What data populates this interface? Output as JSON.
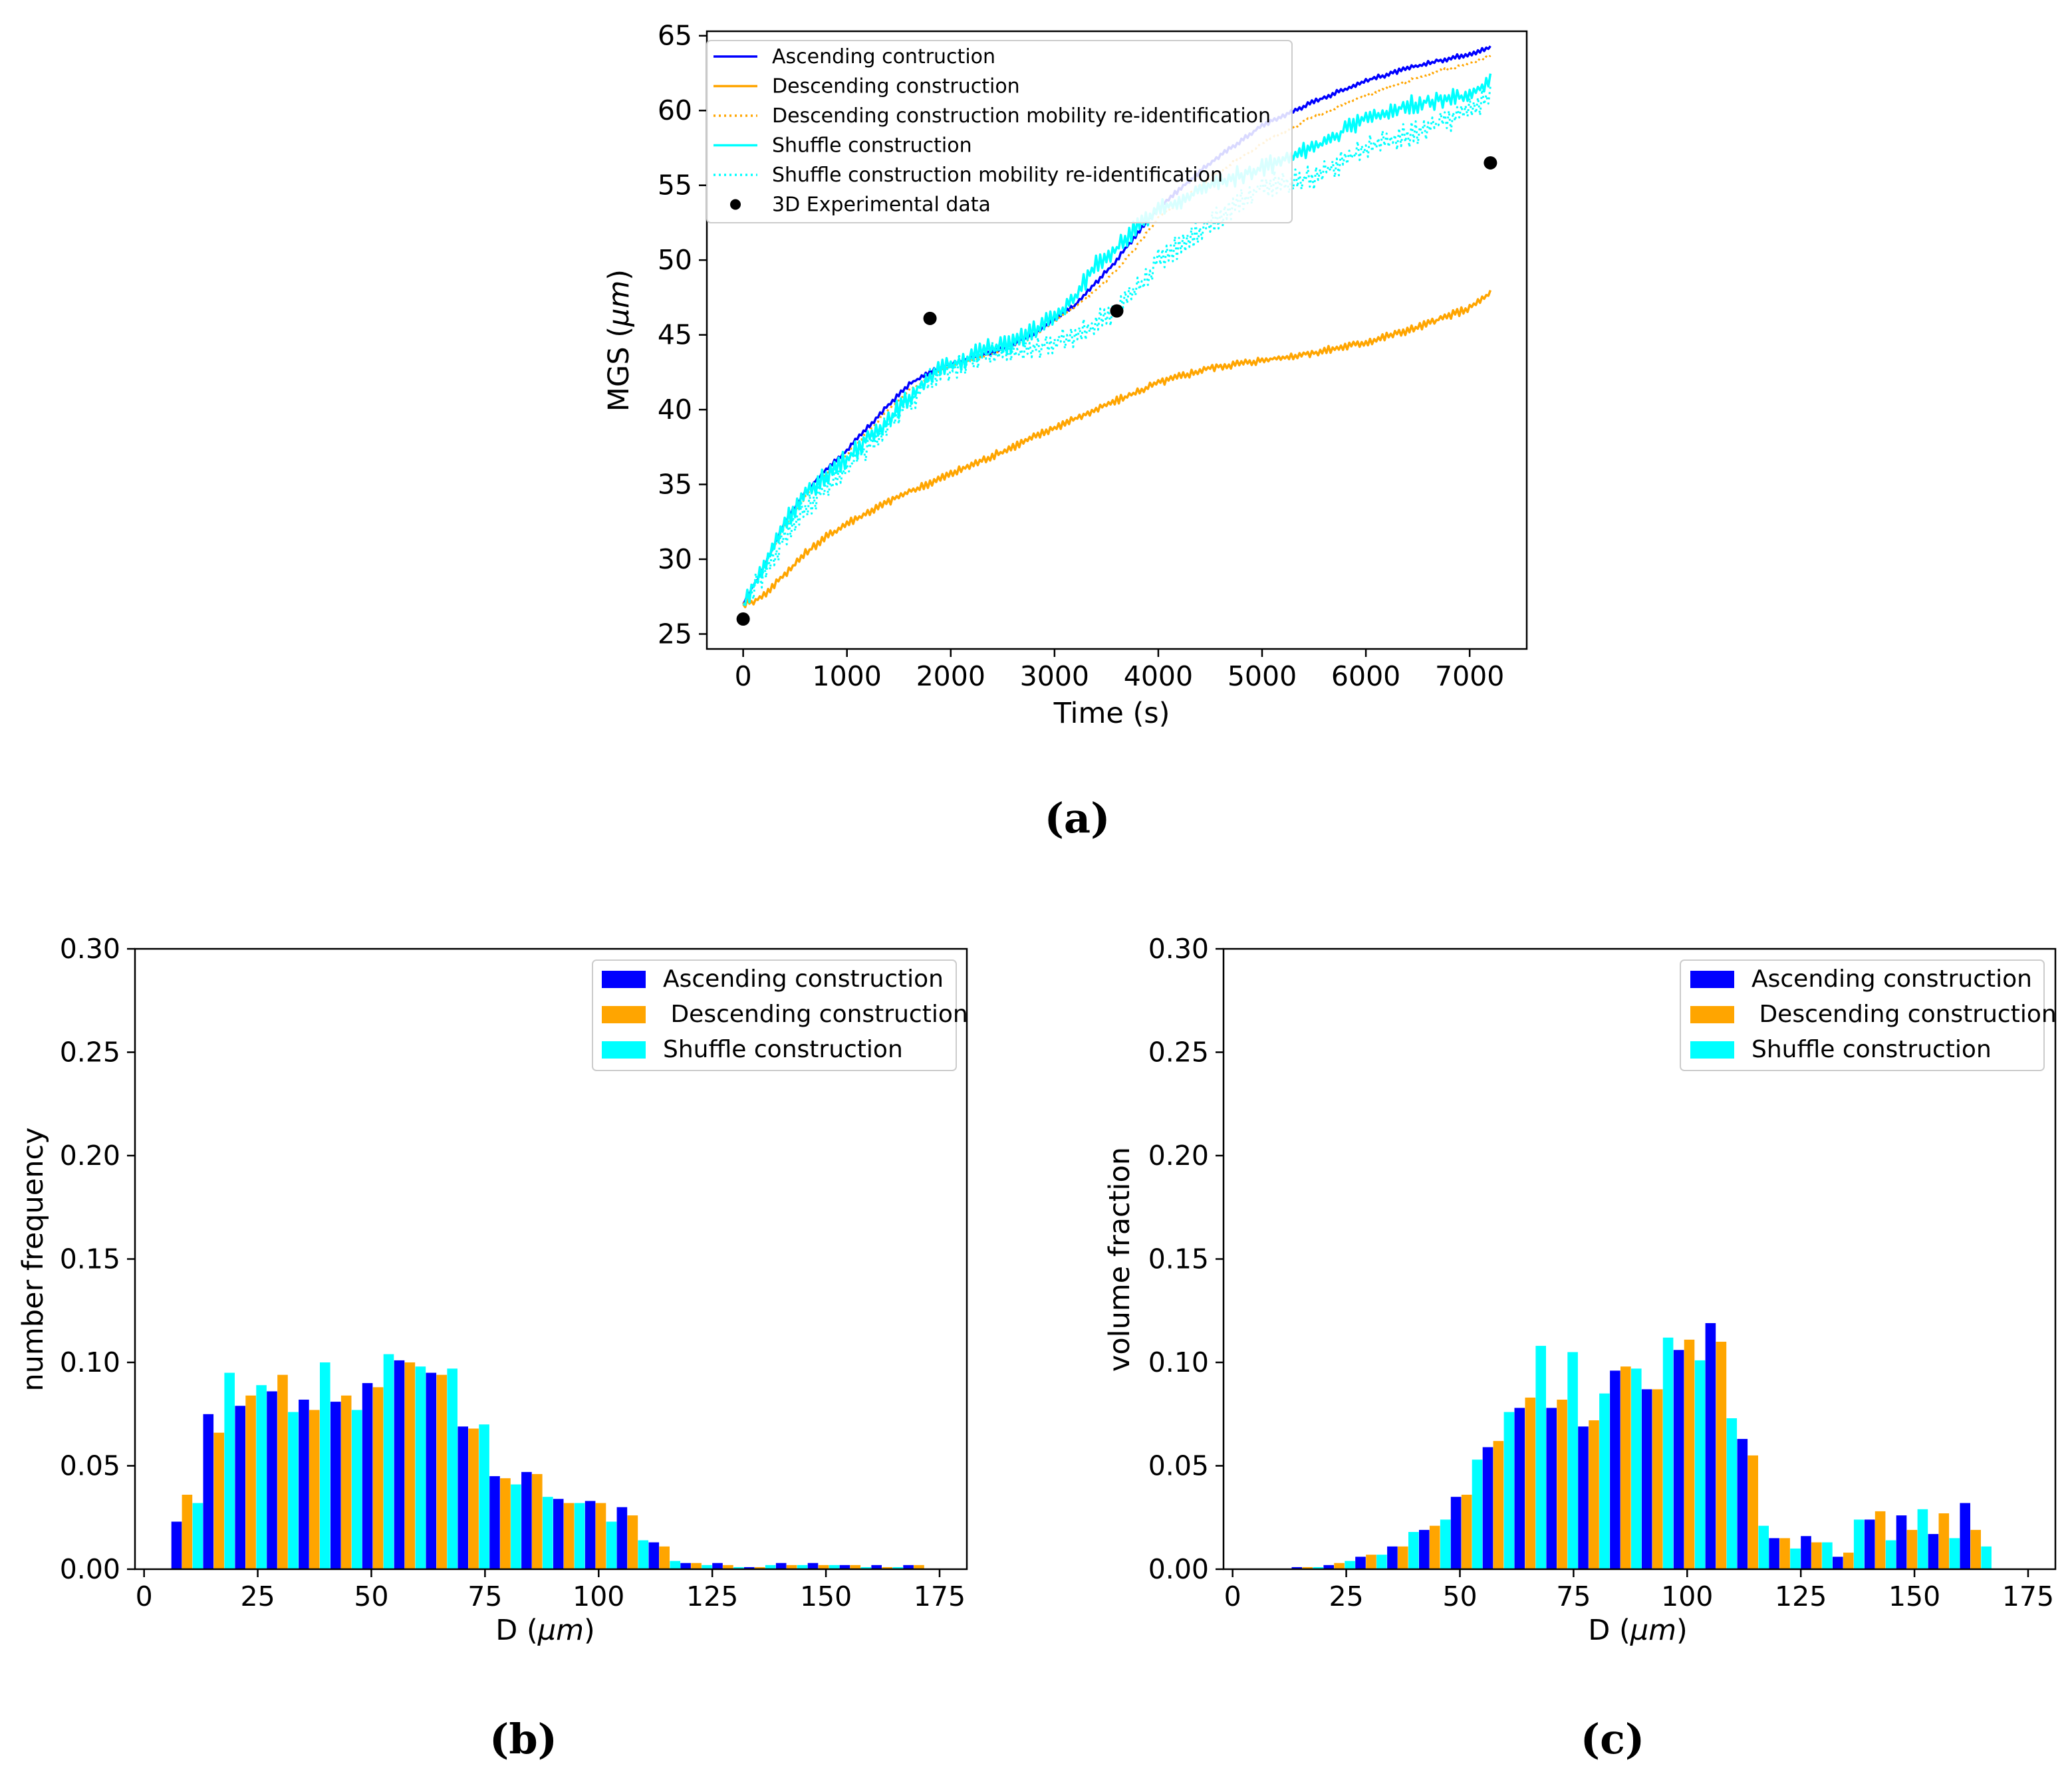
{
  "chart_data": [
    {
      "id": "a",
      "type": "line",
      "caption": "(a)",
      "xlabel": "Time (s)",
      "ylabel_prefix": "MGS (",
      "ylabel_unit": "μm",
      "ylabel_suffix": ")",
      "xlim": [
        -350,
        7550
      ],
      "ylim": [
        24,
        65.3
      ],
      "xticks": [
        0,
        1000,
        2000,
        3000,
        4000,
        5000,
        6000,
        7000
      ],
      "yticks": [
        25,
        30,
        35,
        40,
        45,
        50,
        55,
        60,
        65
      ],
      "legend_position": "top-left",
      "series": [
        {
          "name": "Ascending contruction",
          "color": "#0000ff",
          "style": "solid",
          "noise": 0.15,
          "x": [
            0,
            200,
            400,
            600,
            800,
            1000,
            1200,
            1400,
            1600,
            1800,
            2000,
            2200,
            2400,
            2600,
            2800,
            3000,
            3200,
            3400,
            3600,
            3800,
            4000,
            4500,
            5000,
            5500,
            6000,
            6500,
            7000,
            7200
          ],
          "y": [
            27,
            29.5,
            32.5,
            34.5,
            36.0,
            37.3,
            38.8,
            40.3,
            41.7,
            42.5,
            43.1,
            43.5,
            43.8,
            44.4,
            45.0,
            46.0,
            47.0,
            48.5,
            50.0,
            51.8,
            53.5,
            56.5,
            59.0,
            60.6,
            62.0,
            63.0,
            63.8,
            64.2
          ]
        },
        {
          "name": "Descending construction",
          "color": "#ffa500",
          "style": "solid",
          "noise": 0.25,
          "x": [
            0,
            100,
            200,
            400,
            600,
            800,
            1000,
            1500,
            2000,
            2500,
            3000,
            3500,
            4000,
            4500,
            5000,
            5500,
            6000,
            6500,
            7000,
            7200
          ],
          "y": [
            27,
            27.2,
            27.6,
            29.0,
            30.4,
            31.5,
            32.4,
            34.2,
            35.7,
            37.2,
            38.8,
            40.3,
            41.8,
            42.8,
            43.3,
            43.8,
            44.5,
            45.5,
            46.8,
            47.8
          ]
        },
        {
          "name": "Descending construction mobility re-identification",
          "color": "#ffa500",
          "style": "dotted",
          "noise": 0.1,
          "x": [
            0,
            200,
            400,
            600,
            800,
            1000,
            1200,
            1400,
            1600,
            1800,
            2000,
            2200,
            2400,
            2600,
            2800,
            3000,
            3200,
            3400,
            3600,
            3800,
            4000,
            4500,
            5000,
            5500,
            6000,
            6500,
            7000,
            7200
          ],
          "y": [
            27,
            29.5,
            32.2,
            34.2,
            35.7,
            37.0,
            38.5,
            40.0,
            41.3,
            42.2,
            42.9,
            43.3,
            43.7,
            44.3,
            44.9,
            45.9,
            46.9,
            48.0,
            49.3,
            51.0,
            52.8,
            55.5,
            57.8,
            59.6,
            61.0,
            62.2,
            63.2,
            63.6
          ]
        },
        {
          "name": "Shuffle construction",
          "color": "#00ffff",
          "style": "solid",
          "noise": 0.6,
          "x": [
            0,
            200,
            400,
            600,
            800,
            1000,
            1200,
            1400,
            1600,
            1800,
            2000,
            2200,
            2400,
            2600,
            2800,
            3000,
            3200,
            3400,
            3600,
            3800,
            4000,
            4500,
            5000,
            5500,
            6000,
            6500,
            7000,
            7200
          ],
          "y": [
            27,
            29.5,
            32.5,
            34.3,
            35.6,
            36.8,
            38.0,
            39.4,
            40.8,
            42.3,
            43.0,
            43.6,
            44.2,
            44.4,
            45.3,
            46.2,
            47.5,
            49.8,
            50.8,
            52.2,
            53.3,
            55.0,
            56.2,
            57.5,
            59.5,
            60.5,
            61.0,
            62.0
          ]
        },
        {
          "name": "Shuffle construction mobility re-identification",
          "color": "#00ffff",
          "style": "dotted",
          "noise": 0.8,
          "x": [
            0,
            200,
            400,
            600,
            800,
            1000,
            1200,
            1400,
            1600,
            1800,
            2000,
            2200,
            2400,
            2600,
            2800,
            3000,
            3200,
            3400,
            3600,
            3800,
            4000,
            4500,
            5000,
            5500,
            6000,
            6500,
            7000,
            7200
          ],
          "y": [
            27,
            29.0,
            31.5,
            33.5,
            34.8,
            36.0,
            37.5,
            39.0,
            40.5,
            42.0,
            42.8,
            43.3,
            43.8,
            43.8,
            44.0,
            44.5,
            45.0,
            45.8,
            46.5,
            48.0,
            50.0,
            52.5,
            55.0,
            55.5,
            57.5,
            58.5,
            60.0,
            61.0
          ]
        },
        {
          "name": "3D Experimental data",
          "color": "#000000",
          "style": "marker",
          "x": [
            0,
            1800,
            3600,
            7200
          ],
          "y": [
            26.0,
            46.1,
            46.6,
            56.5
          ]
        }
      ]
    },
    {
      "id": "b",
      "type": "bar",
      "caption": "(b)",
      "xlabel_prefix": "D (",
      "xlabel_unit": "μm",
      "xlabel_suffix": ")",
      "ylabel": "number frequency",
      "xlim": [
        -2,
        181
      ],
      "ylim": [
        0,
        0.3
      ],
      "xticks": [
        0,
        25,
        50,
        75,
        100,
        125,
        150,
        175
      ],
      "yticks": [
        "0.00",
        "0.05",
        "0.10",
        "0.15",
        "0.20",
        "0.25",
        "0.30"
      ],
      "bin_width": 7,
      "first_bin_left": 6,
      "legend_position": "top-right",
      "series": [
        {
          "name": "Ascending construction",
          "color": "#0000ff",
          "values": [
            0.023,
            0.075,
            0.079,
            0.086,
            0.082,
            0.081,
            0.09,
            0.101,
            0.095,
            0.069,
            0.045,
            0.047,
            0.034,
            0.033,
            0.03,
            0.013,
            0.003,
            0.003,
            0.001,
            0.003,
            0.003,
            0.002,
            0.002,
            0.002
          ]
        },
        {
          "name": " Descending construction",
          "color": "#ffa500",
          "values": [
            0.036,
            0.066,
            0.084,
            0.094,
            0.077,
            0.084,
            0.088,
            0.1,
            0.094,
            0.068,
            0.044,
            0.046,
            0.032,
            0.032,
            0.026,
            0.011,
            0.003,
            0.002,
            0.001,
            0.002,
            0.002,
            0.002,
            0.001,
            0.002
          ]
        },
        {
          "name": "Shuffle construction",
          "color": "#00ffff",
          "values": [
            0.032,
            0.095,
            0.089,
            0.076,
            0.1,
            0.077,
            0.104,
            0.098,
            0.097,
            0.07,
            0.041,
            0.035,
            0.032,
            0.023,
            0.014,
            0.004,
            0.002,
            0.001,
            0.002,
            0.002,
            0.002,
            0.001,
            0.001,
            0.0
          ]
        }
      ]
    },
    {
      "id": "c",
      "type": "bar",
      "caption": "(c)",
      "xlabel_prefix": "D (",
      "xlabel_unit": "μm",
      "xlabel_suffix": ")",
      "ylabel": "volume fraction",
      "xlim": [
        -2,
        181
      ],
      "ylim": [
        0,
        0.3
      ],
      "xticks": [
        0,
        25,
        50,
        75,
        100,
        125,
        150,
        175
      ],
      "yticks": [
        "0.00",
        "0.05",
        "0.10",
        "0.15",
        "0.20",
        "0.25",
        "0.30"
      ],
      "bin_width": 7,
      "first_bin_left": 13,
      "legend_position": "top-right",
      "series": [
        {
          "name": "Ascending construction",
          "color": "#0000ff",
          "values": [
            0.001,
            0.002,
            0.006,
            0.011,
            0.019,
            0.035,
            0.059,
            0.078,
            0.078,
            0.069,
            0.096,
            0.087,
            0.106,
            0.119,
            0.063,
            0.015,
            0.016,
            0.006,
            0.024,
            0.026,
            0.017,
            0.032
          ]
        },
        {
          "name": " Descending construction",
          "color": "#ffa500",
          "values": [
            0.001,
            0.003,
            0.007,
            0.011,
            0.021,
            0.036,
            0.062,
            0.083,
            0.082,
            0.072,
            0.098,
            0.087,
            0.111,
            0.11,
            0.055,
            0.015,
            0.013,
            0.008,
            0.028,
            0.019,
            0.027,
            0.019
          ]
        },
        {
          "name": "Shuffle construction",
          "color": "#00ffff",
          "values": [
            0.001,
            0.004,
            0.007,
            0.018,
            0.024,
            0.053,
            0.076,
            0.108,
            0.105,
            0.085,
            0.097,
            0.112,
            0.101,
            0.073,
            0.021,
            0.01,
            0.013,
            0.024,
            0.014,
            0.029,
            0.015,
            0.011
          ]
        }
      ]
    }
  ]
}
